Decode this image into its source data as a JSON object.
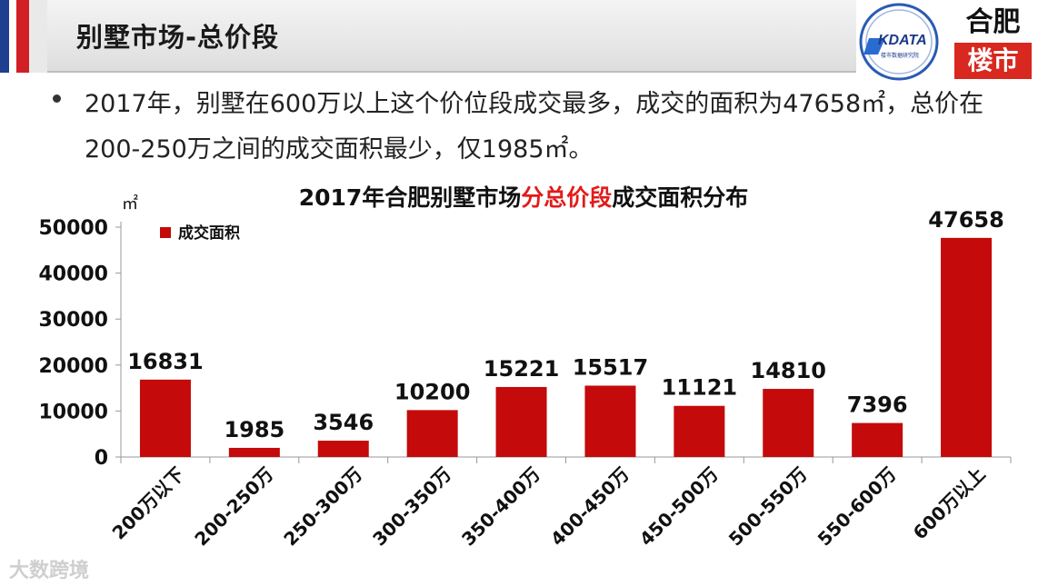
{
  "header": {
    "title": "别墅市场-总价段"
  },
  "logos": {
    "kdata_text": "KDATA",
    "kdata_sub": "楼市数据研究院",
    "loushi_top": "合肥",
    "loushi_bottom": "楼市"
  },
  "bullet": {
    "text": "2017年，别墅在600万以上这个价位段成交最多，成交的面积为47658㎡，总价在200-250万之间的成交面积最少，仅1985㎡。"
  },
  "watermark": "大数跨境",
  "colors": {
    "bar": "#c40a0a",
    "title_highlight": "#e21b1b",
    "header_blue": "#1f3f8f",
    "header_red": "#d21f26"
  },
  "chart_data": {
    "type": "bar",
    "title_parts": [
      "2017年合肥别墅市场",
      "分总价段",
      "成交面积分布"
    ],
    "ylabel": "㎡",
    "legend": "成交面积",
    "legend_position": "top-left",
    "categories": [
      "200万以下",
      "200-250万",
      "250-300万",
      "300-350万",
      "350-400万",
      "400-450万",
      "450-500万",
      "500-550万",
      "550-600万",
      "600万以上"
    ],
    "series": [
      {
        "name": "成交面积",
        "values": [
          16831,
          1985,
          3546,
          10200,
          15221,
          15517,
          11121,
          14810,
          7396,
          47658
        ]
      }
    ],
    "ylim": [
      0,
      50000
    ],
    "yticks": [
      0,
      10000,
      20000,
      30000,
      40000,
      50000
    ],
    "grid": false
  }
}
